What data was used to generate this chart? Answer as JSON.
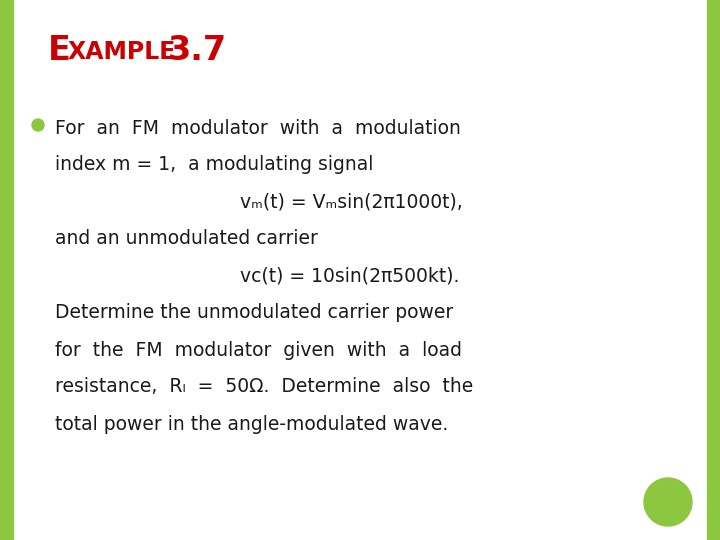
{
  "background_color": "#ffffff",
  "border_color": "#8dc63f",
  "title_color": "#cc0000",
  "body_color": "#1a1a1a",
  "bullet_color": "#8dc63f",
  "line1": "For  an  FM  modulator  with  a  modulation",
  "line2": "index m = 1,  a modulating signal",
  "line3": "vₘ(t) = Vₘsin(2π1000t),",
  "line4": "and an unmodulated carrier",
  "line5": "vᴄ(t) = 10sin(2π500kt).",
  "line6": "Determine the unmodulated carrier power",
  "line7": "for  the  FM  modulator  given  with  a  load",
  "line8": "resistance,  Rₗ  =  50Ω.  Determine  also  the",
  "line9": "total power in the angle-modulated wave."
}
